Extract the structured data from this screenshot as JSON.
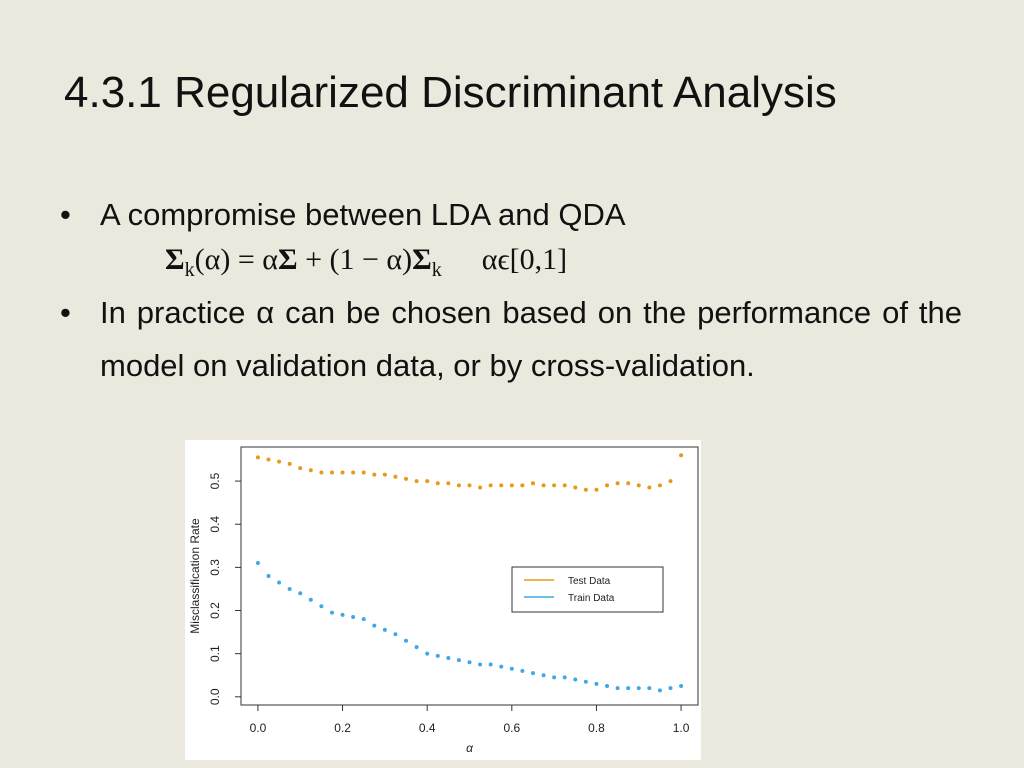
{
  "slide": {
    "title": "4.3.1 Regularized Discriminant Analysis",
    "bullets": [
      {
        "text": "A compromise between LDA and QDA",
        "formula": [
          {
            "text": "Σ",
            "bold": true,
            "sub": false
          },
          {
            "text": "k",
            "bold": false,
            "sub": true
          },
          {
            "text": "(α) = α",
            "bold": false,
            "sub": false
          },
          {
            "text": "Σ",
            "bold": true,
            "sub": false
          },
          {
            "text": " + (1 − α)",
            "bold": false,
            "sub": false
          },
          {
            "text": "Σ",
            "bold": true,
            "sub": false
          },
          {
            "text": "k",
            "bold": false,
            "sub": true
          }
        ],
        "formula_domain": "αϵ[0,1]"
      },
      {
        "text": "In practice α can be chosen based on the performance of the model on validation data, or by cross-validation."
      }
    ]
  },
  "chart_data": {
    "type": "scatter",
    "xlabel": "α",
    "ylabel": "Misclassification Rate",
    "x": [
      0,
      0.025,
      0.05,
      0.075,
      0.1,
      0.125,
      0.15,
      0.175,
      0.2,
      0.225,
      0.25,
      0.275,
      0.3,
      0.325,
      0.35,
      0.375,
      0.4,
      0.425,
      0.45,
      0.475,
      0.5,
      0.525,
      0.55,
      0.575,
      0.6,
      0.625,
      0.65,
      0.675,
      0.7,
      0.725,
      0.75,
      0.775,
      0.8,
      0.825,
      0.85,
      0.875,
      0.9,
      0.925,
      0.95,
      0.975,
      1
    ],
    "series": [
      {
        "name": "Test Data",
        "color": "#e69a1a",
        "values": [
          0.555,
          0.55,
          0.545,
          0.54,
          0.53,
          0.525,
          0.52,
          0.52,
          0.52,
          0.52,
          0.52,
          0.515,
          0.515,
          0.51,
          0.505,
          0.5,
          0.5,
          0.495,
          0.495,
          0.49,
          0.49,
          0.485,
          0.49,
          0.49,
          0.49,
          0.49,
          0.495,
          0.49,
          0.49,
          0.49,
          0.485,
          0.48,
          0.48,
          0.49,
          0.495,
          0.495,
          0.49,
          0.485,
          0.49,
          0.5,
          0.56
        ]
      },
      {
        "name": "Train Data",
        "color": "#3fa8e6",
        "values": [
          0.31,
          0.28,
          0.265,
          0.25,
          0.24,
          0.225,
          0.21,
          0.195,
          0.19,
          0.185,
          0.18,
          0.165,
          0.155,
          0.145,
          0.13,
          0.115,
          0.1,
          0.095,
          0.09,
          0.085,
          0.08,
          0.075,
          0.075,
          0.07,
          0.065,
          0.06,
          0.055,
          0.05,
          0.045,
          0.045,
          0.04,
          0.035,
          0.03,
          0.025,
          0.02,
          0.02,
          0.02,
          0.02,
          0.015,
          0.02,
          0.025
        ]
      }
    ],
    "xlim": [
      -0.04,
      1.04
    ],
    "ylim": [
      -0.019,
      0.579
    ],
    "xticks": [
      {
        "value": 0,
        "label": "0.0"
      },
      0.2,
      0.4,
      0.6,
      0.8,
      {
        "value": 1,
        "label": "1.0"
      }
    ],
    "yticks": [
      {
        "value": 0,
        "label": "0.0"
      },
      0.1,
      0.2,
      0.3,
      0.4,
      0.5
    ],
    "legend": "right"
  }
}
